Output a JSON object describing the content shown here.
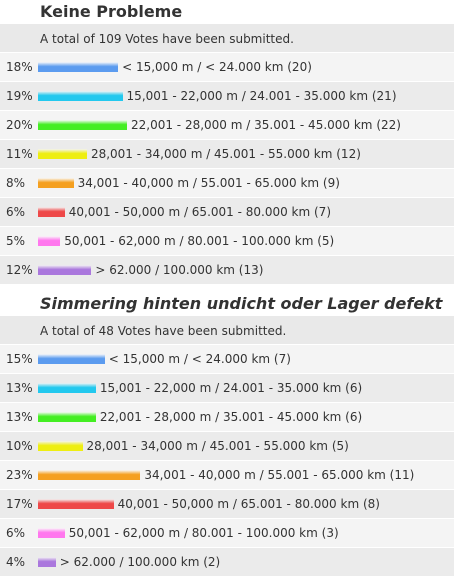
{
  "polls": [
    {
      "title": "Keine Probleme",
      "total": "A total of 109 Votes have been submitted.",
      "options": [
        {
          "value": 18,
          "value_label": "18%",
          "label": "< 15,000 m / < 24.000 km (20)",
          "color": "#5b9bef"
        },
        {
          "value": 19,
          "value_label": "19%",
          "label": "15,001 - 22,000 m / 24.001 - 35.000 km (21)",
          "color": "#22c8ee"
        },
        {
          "value": 20,
          "value_label": "20%",
          "label": "22,001 - 28,000 m / 35.001 - 45.000 km (22)",
          "color": "#44ee22"
        },
        {
          "value": 11,
          "value_label": "11%",
          "label": "28,001 - 34,000 m / 45.001 - 55.000 km (12)",
          "color": "#eeee11"
        },
        {
          "value": 8,
          "value_label": "8%",
          "label": "34,001 - 40,000 m / 55.001 - 65.000 km (9)",
          "color": "#f5a020"
        },
        {
          "value": 6,
          "value_label": "6%",
          "label": "40,001 - 50,000 m / 65.001 - 80.000 km (7)",
          "color": "#ee4848"
        },
        {
          "value": 5,
          "value_label": "5%",
          "label": "50,001 - 62,000 m / 80.001 - 100.000 km (5)",
          "color": "#ff77ee"
        },
        {
          "value": 12,
          "value_label": "12%",
          "label": "> 62.000 / 100.000 km (13)",
          "color": "#aa77dd"
        }
      ]
    },
    {
      "title": "Simmering hinten undicht oder Lager defekt",
      "total": "A total of 48 Votes have been submitted.",
      "options": [
        {
          "value": 15,
          "value_label": "15%",
          "label": "< 15,000 m / < 24.000 km (7)",
          "color": "#5b9bef"
        },
        {
          "value": 13,
          "value_label": "13%",
          "label": "15,001 - 22,000 m / 24.001 - 35.000 km (6)",
          "color": "#22c8ee"
        },
        {
          "value": 13,
          "value_label": "13%",
          "label": "22,001 - 28,000 m / 35.001 - 45.000 km (6)",
          "color": "#44ee22"
        },
        {
          "value": 10,
          "value_label": "10%",
          "label": "28,001 - 34,000 m / 45.001 - 55.000 km (5)",
          "color": "#eeee11"
        },
        {
          "value": 23,
          "value_label": "23%",
          "label": "34,001 - 40,000 m / 55.001 - 65.000 km (11)",
          "color": "#f5a020"
        },
        {
          "value": 17,
          "value_label": "17%",
          "label": "40,001 - 50,000 m / 65.001 - 80.000 km (8)",
          "color": "#ee4848"
        },
        {
          "value": 6,
          "value_label": "6%",
          "label": "50,001 - 62,000 m / 80.001 - 100.000 km (3)",
          "color": "#ff77ee"
        },
        {
          "value": 4,
          "value_label": "4%",
          "label": "> 62.000 / 100.000 km (2)",
          "color": "#aa77dd"
        }
      ]
    }
  ]
}
